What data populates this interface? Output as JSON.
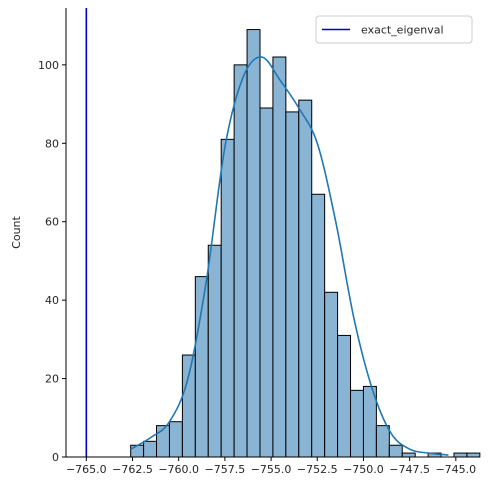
{
  "chart_data": {
    "type": "histogram",
    "title": "",
    "xlabel": "",
    "ylabel": "Count",
    "xlim": [
      -766.1,
      -743.8
    ],
    "ylim": [
      0,
      114.5
    ],
    "bin_start": -762.6,
    "bin_width": 0.7,
    "counts": [
      3,
      4,
      8,
      9,
      26,
      46,
      54,
      81,
      100,
      109,
      89,
      102,
      88,
      91,
      67,
      42,
      31,
      17,
      18,
      8,
      3,
      1,
      0,
      1,
      0,
      1,
      1
    ],
    "kde": {
      "x": [
        -762.6,
        -761.5,
        -760.5,
        -759.5,
        -758.5,
        -757.5,
        -756.5,
        -755.5,
        -754.5,
        -753.5,
        -752.5,
        -751.5,
        -750.5,
        -749.5,
        -748.5,
        -747.5,
        -746.5,
        -745.4
      ],
      "y": [
        2,
        5,
        9,
        20,
        45,
        79,
        97,
        102,
        96,
        89,
        80,
        60,
        35,
        17,
        6,
        2,
        1,
        0.5
      ]
    },
    "vline": {
      "x": -765.0,
      "label": "exact_eigenval",
      "color": "#0000cc"
    },
    "x_ticks": [
      -765.0,
      -762.5,
      -760.0,
      -757.5,
      -755.0,
      -752.5,
      -750.0,
      -747.5,
      -745.0
    ],
    "x_tick_labels": [
      "−765.0",
      "−762.5",
      "−760.0",
      "−757.5",
      "−755.0",
      "−752.5",
      "−750.0",
      "−747.5",
      "−745.0"
    ],
    "y_ticks": [
      0,
      20,
      40,
      60,
      80,
      100
    ],
    "y_tick_labels": [
      "0",
      "20",
      "40",
      "60",
      "80",
      "100"
    ],
    "bar_color": "#89b4d4",
    "kde_color": "#1f77b4",
    "legend": {
      "position": "top-right",
      "entries": [
        "exact_eigenval"
      ]
    },
    "grid": false
  }
}
